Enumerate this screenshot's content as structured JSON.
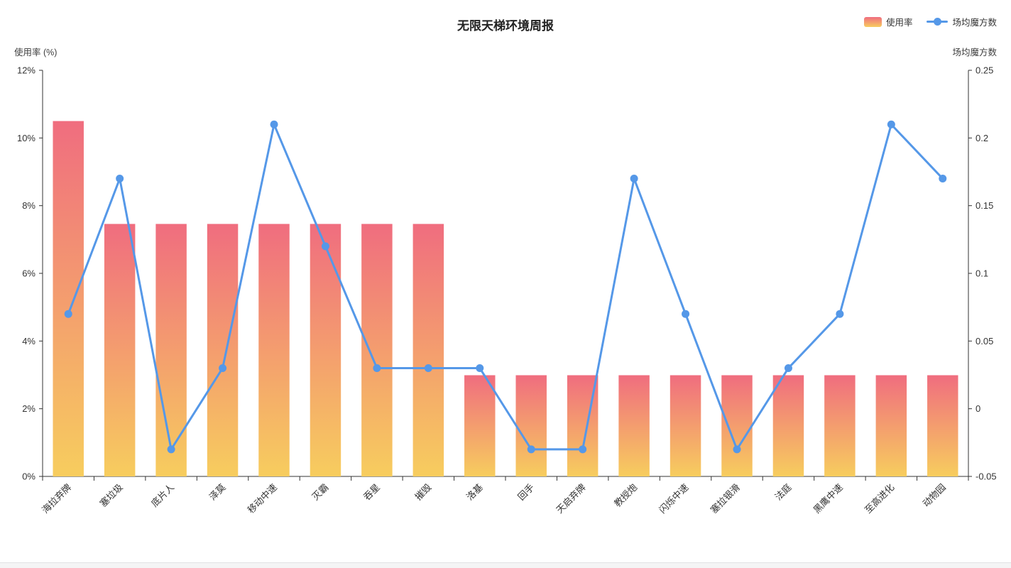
{
  "title": "无限天梯环境周报",
  "legend": {
    "items": [
      {
        "label": "使用率",
        "type": "bar-gradient"
      },
      {
        "label": "场均魔方数",
        "type": "line-marker"
      }
    ]
  },
  "axes": {
    "left_name": "使用率 (%)",
    "right_name": "场均魔方数",
    "left_ticks": [
      "12%",
      "10%",
      "8%",
      "6%",
      "4%",
      "2%",
      "0%"
    ],
    "right_ticks": [
      "0.25",
      "0.2",
      "0.15",
      "0.1",
      "0.05",
      "0",
      "-0.05"
    ]
  },
  "colors": {
    "bar_top": "#f06d7f",
    "bar_bottom": "#f7cd5e",
    "line": "#5598e8",
    "axis": "#333333",
    "text": "#333333"
  },
  "chart_data": {
    "type": "bar+line",
    "title": "无限天梯环境周报",
    "categories": [
      "海拉弃牌",
      "塞垃圾",
      "底片人",
      "泽莫",
      "移动中速",
      "灭霸",
      "吞星",
      "摧毁",
      "洛基",
      "回手",
      "天启弃牌",
      "教授炮",
      "闪烁中速",
      "塞拉银滑",
      "法庭",
      "黑鹰中速",
      "至高进化",
      "动物园"
    ],
    "series": [
      {
        "name": "使用率",
        "type": "bar",
        "axis": "left",
        "unit": "%",
        "values": [
          10.5,
          7.46,
          7.46,
          7.46,
          7.46,
          7.46,
          7.46,
          7.46,
          2.99,
          2.99,
          2.99,
          2.99,
          2.99,
          2.99,
          2.99,
          2.99,
          2.99,
          2.99
        ]
      },
      {
        "name": "场均魔方数",
        "type": "line",
        "axis": "right",
        "values": [
          0.07,
          0.17,
          -0.03,
          0.03,
          0.21,
          0.12,
          0.03,
          0.03,
          0.03,
          -0.03,
          -0.03,
          0.17,
          0.07,
          -0.03,
          0.03,
          0.07,
          0.21,
          0.17
        ]
      }
    ],
    "left_axis": {
      "label": "使用率 (%)",
      "min": 0,
      "max": 12,
      "tick_step": 2,
      "format": "percent"
    },
    "right_axis": {
      "label": "场均魔方数",
      "min": -0.05,
      "max": 0.25,
      "tick_step": 0.05
    },
    "grid": false,
    "legend_position": "top-right"
  }
}
